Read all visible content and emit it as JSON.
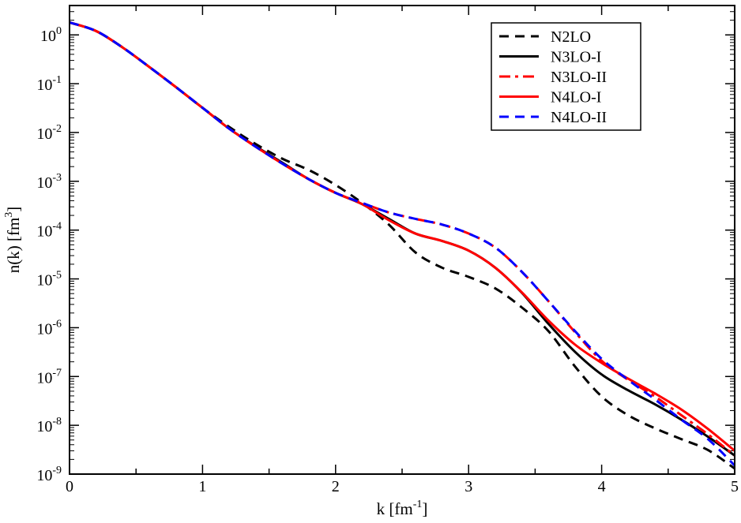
{
  "chart_data": {
    "type": "line",
    "title": "",
    "xlabel": "k [fm^-1]",
    "ylabel": "n(k) [fm^3]",
    "xlim": [
      0,
      5
    ],
    "ylim": [
      1e-09,
      4
    ],
    "yscale": "log",
    "grid": false,
    "legend_position": "top-right",
    "x_ticks": [
      "0",
      "1",
      "2",
      "3",
      "4",
      "5"
    ],
    "y_ticks": [
      {
        "base": "10",
        "exp": "0"
      },
      {
        "base": "10",
        "exp": "-1"
      },
      {
        "base": "10",
        "exp": "-2"
      },
      {
        "base": "10",
        "exp": "-3"
      },
      {
        "base": "10",
        "exp": "-4"
      },
      {
        "base": "10",
        "exp": "-5"
      },
      {
        "base": "10",
        "exp": "-6"
      },
      {
        "base": "10",
        "exp": "-7"
      },
      {
        "base": "10",
        "exp": "-8"
      },
      {
        "base": "10",
        "exp": "-9"
      }
    ],
    "series": [
      {
        "name": "N2LO",
        "color": "#000000",
        "dash": "dashed",
        "x": [
          0,
          0.2,
          0.4,
          0.6,
          0.8,
          1.0,
          1.2,
          1.4,
          1.6,
          1.8,
          2.0,
          2.2,
          2.4,
          2.6,
          2.8,
          3.0,
          3.2,
          3.4,
          3.6,
          3.8,
          4.0,
          4.2,
          4.4,
          4.6,
          4.8,
          5.0
        ],
        "y": [
          1.8,
          1.2,
          0.55,
          0.22,
          0.085,
          0.032,
          0.013,
          0.0058,
          0.0029,
          0.0017,
          0.00084,
          0.00036,
          0.00013,
          3.5e-05,
          1.7e-05,
          1.1e-05,
          6.4e-06,
          2.6e-06,
          8.5e-07,
          1.6e-07,
          3.9e-08,
          1.6e-08,
          8.7e-09,
          5.2e-09,
          3.1e-09,
          1.3e-09
        ]
      },
      {
        "name": "N3LO-I",
        "color": "#000000",
        "dash": "solid",
        "x": [
          0,
          0.2,
          0.4,
          0.6,
          0.8,
          1.0,
          1.2,
          1.4,
          1.6,
          1.8,
          2.0,
          2.2,
          2.4,
          2.6,
          2.8,
          3.0,
          3.2,
          3.4,
          3.6,
          3.8,
          4.0,
          4.2,
          4.4,
          4.6,
          4.8,
          5.0
        ],
        "y": [
          1.8,
          1.2,
          0.55,
          0.22,
          0.085,
          0.032,
          0.012,
          0.0052,
          0.0024,
          0.0011,
          0.00058,
          0.00034,
          0.00017,
          8.5e-05,
          6e-05,
          3.8e-05,
          1.7e-05,
          5.2e-06,
          1.2e-06,
          3.2e-07,
          1.1e-07,
          5.2e-08,
          2.7e-08,
          1.3e-08,
          5.8e-09,
          2.4e-09
        ]
      },
      {
        "name": "N3LO-II",
        "color": "#ff0000",
        "dash": "dash-dot",
        "x": [
          0,
          0.2,
          0.4,
          0.6,
          0.8,
          1.0,
          1.2,
          1.4,
          1.6,
          1.8,
          2.0,
          2.2,
          2.4,
          2.6,
          2.8,
          3.0,
          3.2,
          3.4,
          3.6,
          3.8,
          4.0,
          4.2,
          4.4,
          4.6,
          4.8,
          5.0
        ],
        "y": [
          1.8,
          1.2,
          0.55,
          0.22,
          0.085,
          0.032,
          0.012,
          0.0051,
          0.0023,
          0.0011,
          0.00058,
          0.00036,
          0.00023,
          0.00017,
          0.00013,
          8.5e-05,
          4.4e-05,
          1.4e-05,
          3.5e-06,
          8.1e-07,
          2.1e-07,
          8.5e-08,
          3.9e-08,
          1.6e-08,
          6.5e-09,
          2.4e-09
        ]
      },
      {
        "name": "N4LO-I",
        "color": "#ff0000",
        "dash": "solid",
        "x": [
          0,
          0.2,
          0.4,
          0.6,
          0.8,
          1.0,
          1.2,
          1.4,
          1.6,
          1.8,
          2.0,
          2.2,
          2.4,
          2.6,
          2.8,
          3.0,
          3.2,
          3.4,
          3.6,
          3.8,
          4.0,
          4.2,
          4.4,
          4.6,
          4.8,
          5.0
        ],
        "y": [
          1.8,
          1.2,
          0.55,
          0.22,
          0.085,
          0.032,
          0.012,
          0.0051,
          0.0023,
          0.0011,
          0.00058,
          0.00034,
          0.00016,
          8.5e-05,
          6e-05,
          3.8e-05,
          1.7e-05,
          5.3e-06,
          1.4e-06,
          4.5e-07,
          1.9e-07,
          9e-08,
          4.5e-08,
          2.1e-08,
          8.4e-09,
          3e-09
        ]
      },
      {
        "name": "N4LO-II",
        "color": "#0000ff",
        "dash": "dashed",
        "x": [
          0,
          0.2,
          0.4,
          0.6,
          0.8,
          1.0,
          1.2,
          1.4,
          1.6,
          1.8,
          2.0,
          2.2,
          2.4,
          2.6,
          2.8,
          3.0,
          3.2,
          3.4,
          3.6,
          3.8,
          4.0,
          4.2,
          4.4,
          4.6,
          4.8,
          5.0
        ],
        "y": [
          1.8,
          1.2,
          0.55,
          0.22,
          0.085,
          0.032,
          0.012,
          0.0051,
          0.0023,
          0.0011,
          0.00058,
          0.00036,
          0.00023,
          0.00017,
          0.00013,
          8.5e-05,
          4.4e-05,
          1.4e-05,
          3.5e-06,
          8.5e-07,
          2.3e-07,
          8.5e-08,
          3.4e-08,
          1.3e-08,
          5.2e-09,
          1.5e-09
        ]
      }
    ]
  }
}
